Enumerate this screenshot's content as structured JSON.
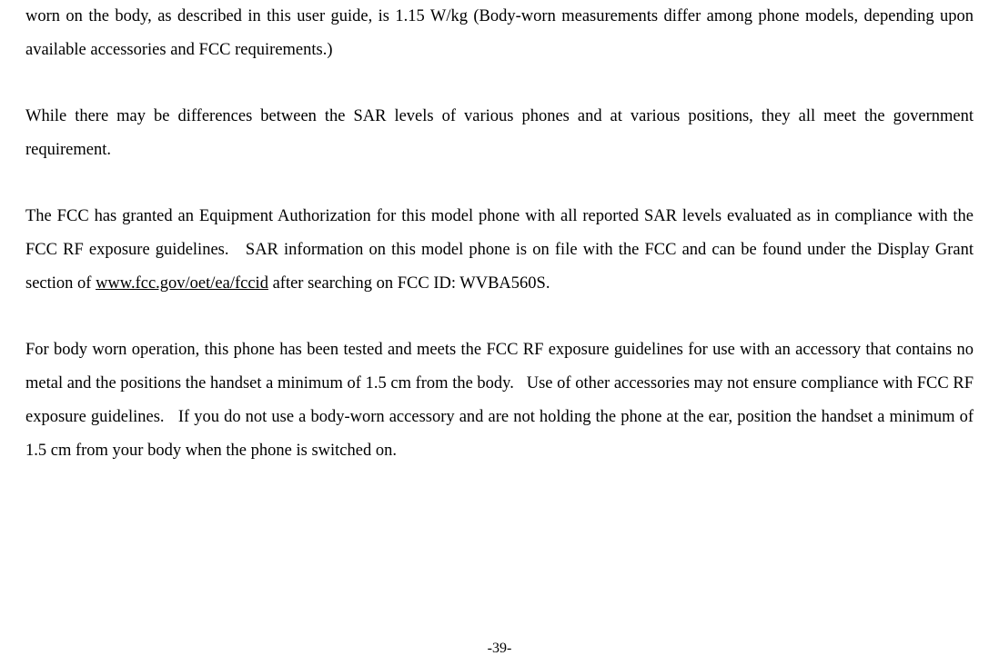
{
  "document": {
    "paragraphs": {
      "p1_part1": "worn on the body, as described in this user guide, is 1.15 W/kg (Body-worn measurements differ among phone models, depending upon available accessories and FCC requirements.)",
      "p2": "While there may be differences between the SAR levels of various phones and at various positions, they all meet the government requirement.",
      "p3_part1": "The FCC has granted an Equipment Authorization for this model phone with all reported SAR levels evaluated as in compliance with the FCC RF exposure guidelines.   SAR information on this model phone is on file with the FCC and can be found under the Display Grant section of ",
      "p3_link": "www.fcc.gov/oet/ea/fccid",
      "p3_part2": " after searching on FCC ID: WVBA560S.",
      "p4": "For body worn operation, this phone has been tested and meets the FCC RF exposure guidelines for use with an accessory that contains no metal and the positions the handset a minimum of 1.5 cm from the body.   Use of other accessories may not ensure compliance with FCC RF exposure guidelines.   If you do not use a body-worn accessory and are not holding the phone at the ear, position the handset a minimum of 1.5 cm from your body when the phone is switched on."
    },
    "page_number": "-39-"
  },
  "styling": {
    "font_family": "Times New Roman",
    "font_size_pt": 14,
    "line_height": 2.0,
    "text_color": "#000000",
    "background_color": "#ffffff",
    "text_align": "justify"
  }
}
